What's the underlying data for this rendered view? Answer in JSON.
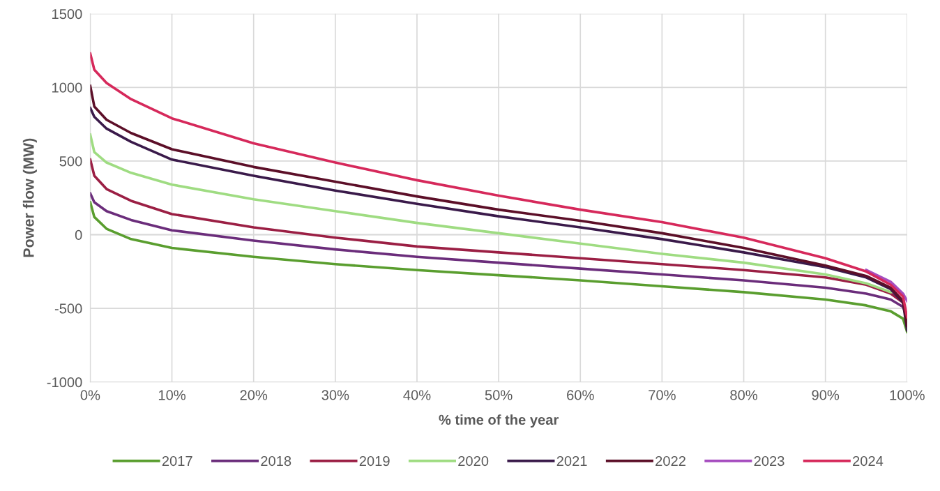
{
  "chart_data": {
    "type": "line",
    "xlabel": "% time of the year",
    "ylabel": "Power flow (MW)",
    "xlim": [
      0,
      100
    ],
    "ylim": [
      -1000,
      1500
    ],
    "xticks": [
      {
        "value": 0,
        "label": "0%"
      },
      {
        "value": 10,
        "label": "10%"
      },
      {
        "value": 20,
        "label": "20%"
      },
      {
        "value": 30,
        "label": "30%"
      },
      {
        "value": 40,
        "label": "40%"
      },
      {
        "value": 50,
        "label": "50%"
      },
      {
        "value": 60,
        "label": "60%"
      },
      {
        "value": 70,
        "label": "70%"
      },
      {
        "value": 80,
        "label": "80%"
      },
      {
        "value": 90,
        "label": "90%"
      },
      {
        "value": 100,
        "label": "100%"
      }
    ],
    "yticks": [
      -1000,
      -500,
      0,
      500,
      1000,
      1500
    ],
    "grid": true,
    "legend": "bottom",
    "marker": "none",
    "line_style": "solid",
    "x": [
      0,
      0.5,
      2,
      5,
      10,
      20,
      30,
      40,
      50,
      60,
      70,
      80,
      90,
      95,
      98,
      99.5,
      100
    ],
    "series": [
      {
        "name": "2017",
        "color": "#5a9e2f",
        "values": [
          220,
          120,
          40,
          -30,
          -90,
          -150,
          -200,
          -240,
          -275,
          -310,
          -350,
          -390,
          -440,
          -480,
          -520,
          -570,
          -660
        ]
      },
      {
        "name": "2018",
        "color": "#6b2d7b",
        "values": [
          280,
          220,
          160,
          100,
          30,
          -40,
          -100,
          -150,
          -190,
          -230,
          -270,
          -310,
          -360,
          -400,
          -440,
          -490,
          -560
        ]
      },
      {
        "name": "2019",
        "color": "#9b1f44",
        "values": [
          510,
          400,
          310,
          230,
          140,
          50,
          -20,
          -80,
          -120,
          -160,
          -200,
          -240,
          -290,
          -340,
          -400,
          -460,
          -560
        ]
      },
      {
        "name": "2020",
        "color": "#9fdc82",
        "values": [
          680,
          560,
          490,
          420,
          340,
          240,
          160,
          80,
          10,
          -60,
          -130,
          -190,
          -270,
          -330,
          -390,
          null,
          null
        ]
      },
      {
        "name": "2021",
        "color": "#3a1a4a",
        "values": [
          860,
          800,
          720,
          630,
          510,
          400,
          300,
          210,
          125,
          50,
          -30,
          -120,
          -220,
          -290,
          -370,
          -460,
          -650
        ]
      },
      {
        "name": "2022",
        "color": "#5c0f28",
        "values": [
          1010,
          870,
          780,
          690,
          580,
          460,
          360,
          260,
          170,
          95,
          10,
          -90,
          -210,
          -280,
          -360,
          -450,
          -620
        ]
      },
      {
        "name": "2023",
        "color": "#a64dbf",
        "values": [
          null,
          null,
          null,
          null,
          null,
          null,
          null,
          null,
          null,
          null,
          null,
          null,
          null,
          -240,
          -320,
          -400,
          -450
        ]
      },
      {
        "name": "2024",
        "color": "#d6295b",
        "values": [
          1230,
          1120,
          1030,
          920,
          790,
          620,
          490,
          370,
          265,
          170,
          85,
          -20,
          -160,
          -250,
          -340,
          -420,
          -560
        ]
      }
    ]
  }
}
